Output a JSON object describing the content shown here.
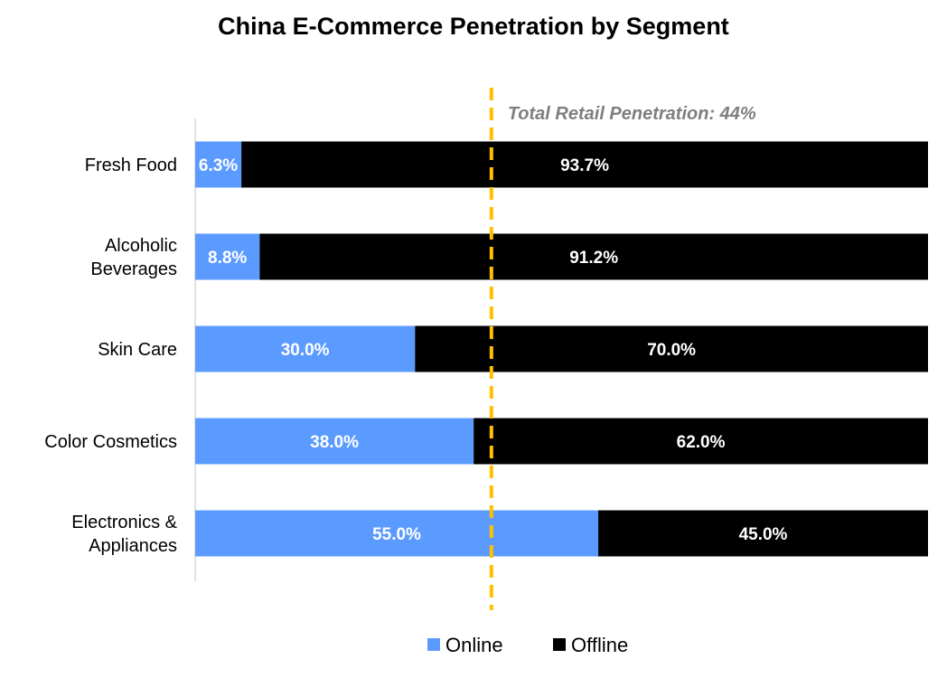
{
  "chart_data": {
    "type": "bar",
    "orientation": "horizontal",
    "stacked": true,
    "title": "China E-Commerce Penetration by Segment",
    "categories": [
      [
        "Fresh Food"
      ],
      [
        "Alcoholic",
        "Beverages"
      ],
      [
        "Skin Care"
      ],
      [
        "Color Cosmetics"
      ],
      [
        "Electronics &",
        "Appliances"
      ]
    ],
    "series": [
      {
        "name": "Online",
        "color": "#5b9bff",
        "values": [
          6.3,
          8.8,
          30.0,
          38.0,
          55.0
        ],
        "labels": [
          "6.3%",
          "8.8%",
          "30.0%",
          "38.0%",
          "55.0%"
        ]
      },
      {
        "name": "Offline",
        "color": "#000000",
        "values": [
          93.7,
          91.2,
          70.0,
          62.0,
          45.0
        ],
        "labels": [
          "93.7%",
          "91.2%",
          "70.0%",
          "62.0%",
          "45.0%"
        ]
      }
    ],
    "xlim": [
      0,
      100
    ],
    "grid": false,
    "legend": "bottom",
    "reference_line": {
      "value": 44,
      "label": "Total Retail Penetration: 44%",
      "color": "#ffc000",
      "style": "dashed"
    }
  }
}
